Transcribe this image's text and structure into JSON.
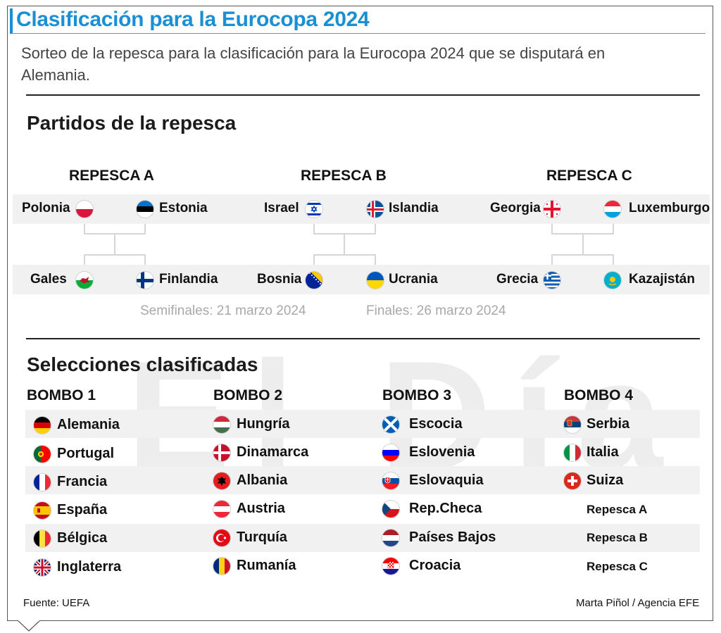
{
  "title": "Clasificación para la Eurocopa 2024",
  "subtitle": "Sorteo de la repesca para la clasificación para la Eurocopa 2024 que se disputará en Alemania.",
  "section_partidos": "Partidos de la repesca",
  "section_selecciones": "Selecciones clasificadas",
  "watermark": "El Día",
  "repescas": [
    {
      "title": "REPESCA A",
      "semi1": [
        "Polonia",
        "Estonia"
      ],
      "semi2": [
        "Gales",
        "Finlandia"
      ]
    },
    {
      "title": "REPESCA B",
      "semi1": [
        "Israel",
        "Islandia"
      ],
      "semi2": [
        "Bosnia",
        "Ucrania"
      ]
    },
    {
      "title": "REPESCA C",
      "semi1": [
        "Georgia",
        "Luxemburgo"
      ],
      "semi2": [
        "Grecia",
        "Kazajistán"
      ]
    }
  ],
  "dates": {
    "semifinales": "Semifinales: 21 marzo 2024",
    "finales": "Finales: 26 marzo 2024"
  },
  "bombos": [
    {
      "title": "BOMBO 1",
      "teams": [
        "Alemania",
        "Portugal",
        "Francia",
        "España",
        "Bélgica",
        "Inglaterra"
      ]
    },
    {
      "title": "BOMBO 2",
      "teams": [
        "Hungría",
        "Dinamarca",
        "Albania",
        "Austria",
        "Turquía",
        "Rumanía"
      ]
    },
    {
      "title": "BOMBO 3",
      "teams": [
        "Escocia",
        "Eslovenia",
        "Eslovaquia",
        "Rep.Checa",
        "Países Bajos",
        "Croacia"
      ]
    },
    {
      "title": "BOMBO 4",
      "teams": [
        "Serbia",
        "Italia",
        "Suiza",
        "Repesca A",
        "Repesca B",
        "Repesca C"
      ]
    }
  ],
  "footer": {
    "source": "Fuente: UEFA",
    "credit": "Marta Piñol / Agencia EFE"
  },
  "colors": {
    "accent": "#1a8fd4",
    "band": "#f1f1f1",
    "date_text": "#a9a9a9"
  }
}
